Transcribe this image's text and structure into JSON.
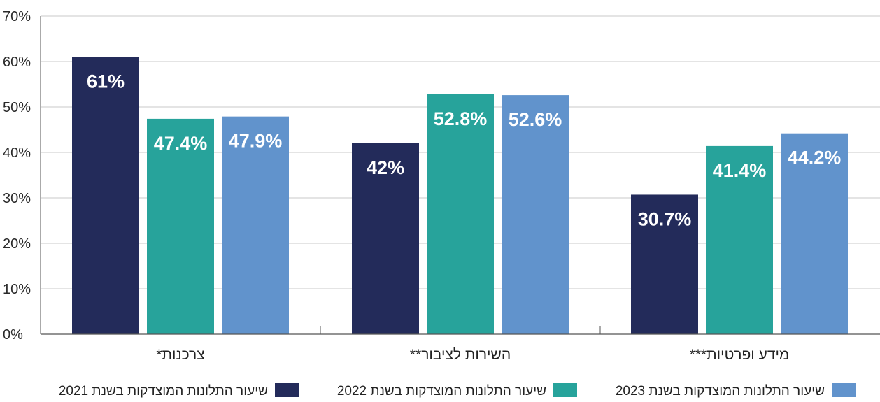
{
  "chart_data": {
    "type": "bar",
    "title": "",
    "xlabel": "",
    "ylabel": "",
    "ylim": [
      0,
      70
    ],
    "yticks": [
      0,
      10,
      20,
      30,
      40,
      50,
      60,
      70
    ],
    "ytick_labels": [
      "0%",
      "10%",
      "20%",
      "30%",
      "40%",
      "50%",
      "60%",
      "70%"
    ],
    "grid": true,
    "legend_position": "bottom",
    "categories": [
      "צרכנות*",
      "השירות לציבור**",
      "מידע ופרטיות***"
    ],
    "series": [
      {
        "name": "שיעור התלונות המוצדקות בשנת 2021",
        "color": "#232b5a",
        "values": [
          61,
          42,
          30.7
        ],
        "labels": [
          "61%",
          "42%",
          "30.7%"
        ]
      },
      {
        "name": "שיעור התלונות המוצדקות בשנת 2022",
        "color": "#27a39b",
        "values": [
          47.4,
          52.8,
          41.4
        ],
        "labels": [
          "47.4%",
          "52.8%",
          "41.4%"
        ]
      },
      {
        "name": "שיעור התלונות המוצדקות בשנת 2023",
        "color": "#6193cc",
        "values": [
          47.9,
          52.6,
          44.2
        ],
        "labels": [
          "47.9%",
          "52.6%",
          "44.2%"
        ]
      }
    ]
  }
}
